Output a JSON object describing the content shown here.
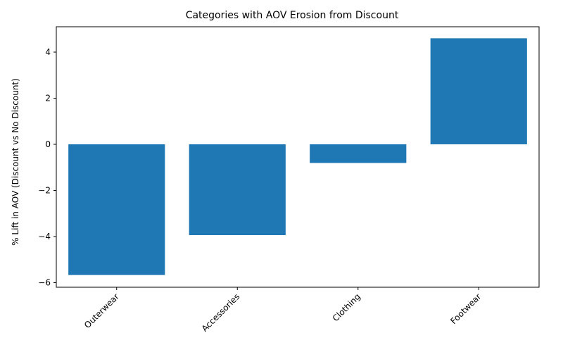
{
  "chart_data": {
    "type": "bar",
    "title": "Categories with AOV Erosion from Discount",
    "xlabel": "",
    "ylabel": "% Lift in AOV (Discount vs No Discount)",
    "categories": [
      "Outerwear",
      "Accessories",
      "Clothing",
      "Footwear"
    ],
    "values": [
      -5.67,
      -3.94,
      -0.81,
      4.6
    ],
    "ylim": [
      -6.2,
      5.1
    ],
    "yticks": [
      -6,
      -4,
      -2,
      0,
      2,
      4
    ],
    "ytick_labels": [
      "−6",
      "−4",
      "−2",
      "0",
      "2",
      "4"
    ],
    "bar_color": "#1f77b4",
    "grid": false,
    "legend": "none"
  }
}
